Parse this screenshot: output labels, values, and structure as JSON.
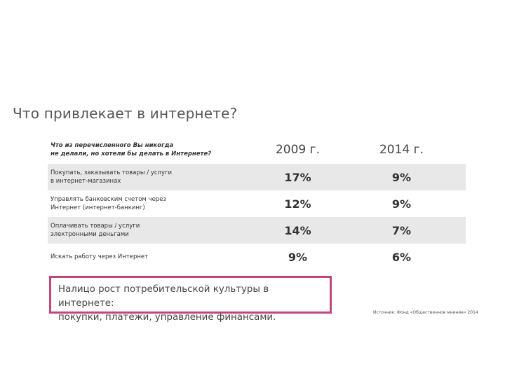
{
  "title": "Что привлекает в интернете?",
  "table": {
    "header_question": "Что из перечисленного Вы никогда\nне делали, но хотели бы делать в Интернете?",
    "years": [
      "2009 г.",
      "2014 г."
    ],
    "rows": [
      {
        "label": "Покупать, заказывать товары / услуги\nв интернет-магазинах",
        "v2009": "17%",
        "v2014": "9%"
      },
      {
        "label": "Управлять банковским счетом через\nИнтернет (интернет-банкинг)",
        "v2009": "12%",
        "v2014": "9%"
      },
      {
        "label": "Оплачивать товары / услуги\nэлектронными деньгами",
        "v2009": "14%",
        "v2014": "7%"
      },
      {
        "label": "Искать работу через Интернет",
        "v2009": "9%",
        "v2014": "6%"
      }
    ]
  },
  "conclusion": "Налицо рост потребительской культуры в интернете:\nпокупки, платежи, управление финансами.",
  "source": "Источник: Фонд «Общественное мнение» 2014",
  "colors": {
    "accent_border": "#c2457c",
    "row_shade": "#e8e8e8"
  }
}
